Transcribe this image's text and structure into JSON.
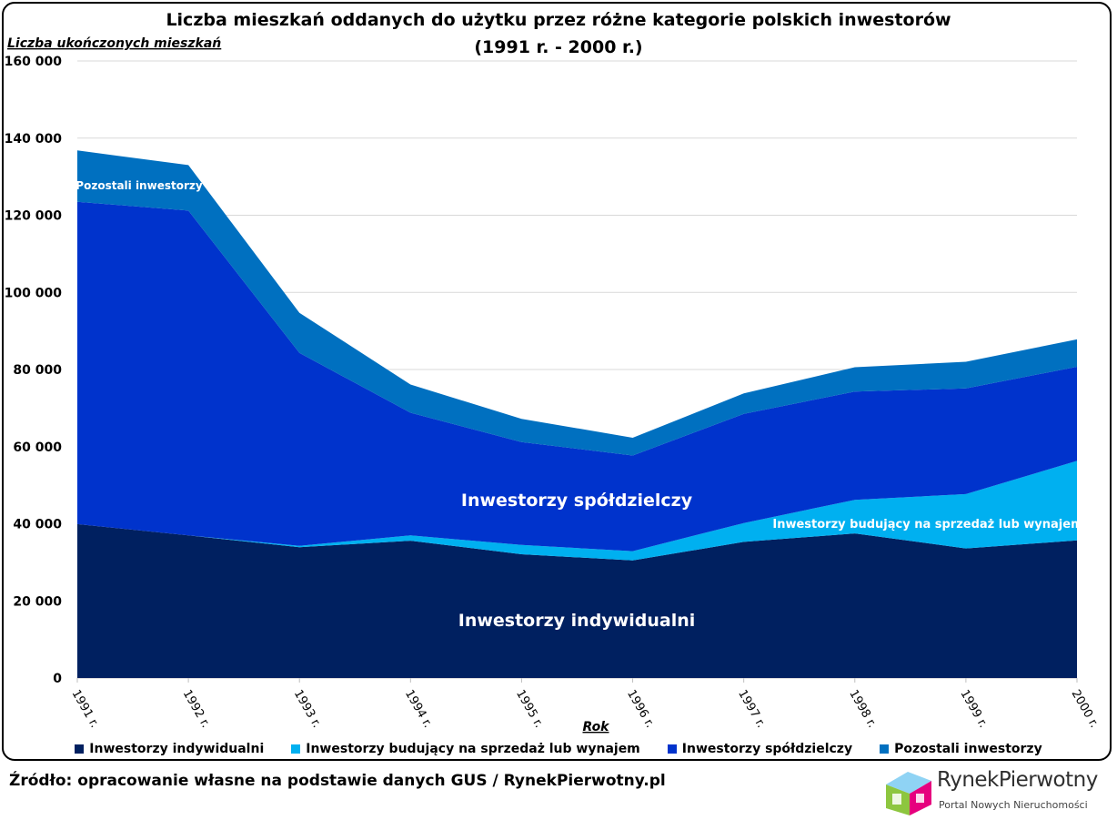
{
  "chart_data": {
    "type": "area",
    "stacked": true,
    "title_line1": "Liczba mieszkań oddanych do użytku przez różne kategorie polskich inwestorów",
    "title_line2": "(1991 r. - 2000 r.)",
    "ylabel": "Liczba ukończonych mieszkań",
    "xlabel": "Rok",
    "ylim": [
      0,
      160000
    ],
    "y_ticks": [
      0,
      20000,
      40000,
      60000,
      80000,
      100000,
      120000,
      140000,
      160000
    ],
    "y_tick_labels": [
      "0",
      "20 000",
      "40 000",
      "60 000",
      "80 000",
      "100 000",
      "120 000",
      "140 000",
      "160 000"
    ],
    "categories": [
      "1991 r.",
      "1992 r.",
      "1993 r.",
      "1994 r.",
      "1995 r.",
      "1996 r.",
      "1997 r.",
      "1998 r.",
      "1999 r.",
      "2000 r."
    ],
    "series": [
      {
        "name": "Inwestorzy indywidualni",
        "color": "#002060",
        "values": [
          39900,
          37000,
          33900,
          35600,
          32100,
          30500,
          35300,
          37500,
          33600,
          35700
        ]
      },
      {
        "name": "Inwestorzy budujący na sprzedaż lub wynajem",
        "color": "#00b0f0",
        "values": [
          0,
          0,
          400,
          1400,
          2400,
          2400,
          4900,
          8700,
          14100,
          20600
        ]
      },
      {
        "name": "Inwestorzy spółdzielczy",
        "color": "#0033cc",
        "values": [
          83600,
          84200,
          50000,
          31800,
          26700,
          24800,
          28300,
          28100,
          27400,
          24400
        ]
      },
      {
        "name": "Pozostali inwestorzy",
        "color": "#0070c0",
        "values": [
          13300,
          11800,
          10400,
          7300,
          6000,
          4600,
          5300,
          6300,
          6900,
          7100
        ]
      }
    ],
    "area_labels": {
      "indywidualni": "Inwestorzy indywidualni",
      "budujacy": "Inwestorzy budujący na sprzedaż lub wynajem",
      "spoldzielczy": "Inwestorzy spółdzielczy",
      "pozostali": "Pozostali inwestorzy"
    },
    "legend_position": "bottom",
    "grid": true
  },
  "legend": [
    {
      "label": "Inwestorzy indywidualni",
      "color": "#002060"
    },
    {
      "label": "Inwestorzy budujący na sprzedaż lub wynajem",
      "color": "#00b0f0"
    },
    {
      "label": "Inwestorzy spółdzielczy",
      "color": "#0033cc"
    },
    {
      "label": "Pozostali inwestorzy",
      "color": "#0070c0"
    }
  ],
  "source": "Źródło: opracowanie własne na podstawie danych GUS / RynekPierwotny.pl",
  "logo": {
    "name": "RynekPierwotny",
    "tagline": "Portal Nowych Nieruchomości"
  }
}
